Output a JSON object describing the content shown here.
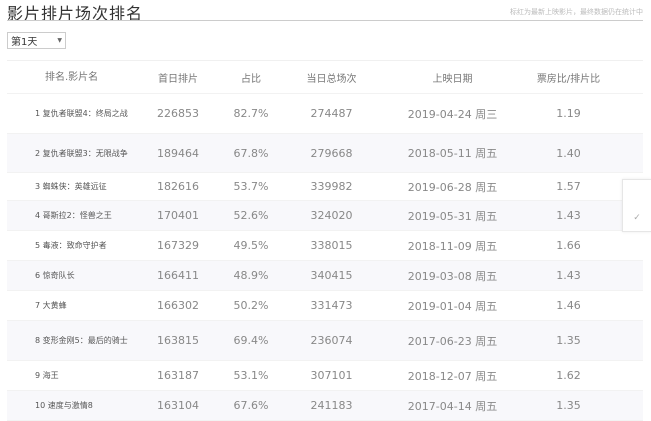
{
  "title": "影片排片场次排名",
  "note": "标红为最新上映影片，最终数据仍在统计中",
  "day_select": {
    "value": "第1天"
  },
  "columns": [
    "排名.影片名",
    "首日排片",
    "占比",
    "当日总场次",
    "上映日期",
    "票房比/排片比"
  ],
  "rows": [
    {
      "name": "1 复仇者联盟4：终局之战",
      "first": "226853",
      "share": "82.7%",
      "total": "274487",
      "date": "2019-04-24 周三",
      "ratio": "1.19",
      "h": 40
    },
    {
      "name": "2 复仇者联盟3：无限战争",
      "first": "189464",
      "share": "67.8%",
      "total": "279668",
      "date": "2018-05-11 周五",
      "ratio": "1.40",
      "h": 39
    },
    {
      "name": "3 蜘蛛侠：英雄远征",
      "first": "182616",
      "share": "53.7%",
      "total": "339982",
      "date": "2019-06-28 周五",
      "ratio": "1.57",
      "h": 28
    },
    {
      "name": "4 哥斯拉2：怪兽之王",
      "first": "170401",
      "share": "52.6%",
      "total": "324020",
      "date": "2019-05-31 周五",
      "ratio": "1.43",
      "h": 30
    },
    {
      "name": "5 毒液：致命守护者",
      "first": "167329",
      "share": "49.5%",
      "total": "338015",
      "date": "2018-11-09 周五",
      "ratio": "1.66",
      "h": 30
    },
    {
      "name": "6 惊奇队长",
      "first": "166411",
      "share": "48.9%",
      "total": "340415",
      "date": "2019-03-08 周五",
      "ratio": "1.43",
      "h": 30
    },
    {
      "name": "7 大黄蜂",
      "first": "166302",
      "share": "50.2%",
      "total": "331473",
      "date": "2019-01-04 周五",
      "ratio": "1.46",
      "h": 30
    },
    {
      "name": "8 变形金刚5：最后的骑士",
      "first": "163815",
      "share": "69.4%",
      "total": "236074",
      "date": "2017-06-23 周五",
      "ratio": "1.35",
      "h": 40
    },
    {
      "name": "9 海王",
      "first": "163187",
      "share": "53.1%",
      "total": "307101",
      "date": "2018-12-07 周五",
      "ratio": "1.62",
      "h": 30
    },
    {
      "name": "10 速度与激情8",
      "first": "163104",
      "share": "67.6%",
      "total": "241183",
      "date": "2017-04-14 周五",
      "ratio": "1.35",
      "h": 30
    }
  ],
  "side_icon": "✓"
}
